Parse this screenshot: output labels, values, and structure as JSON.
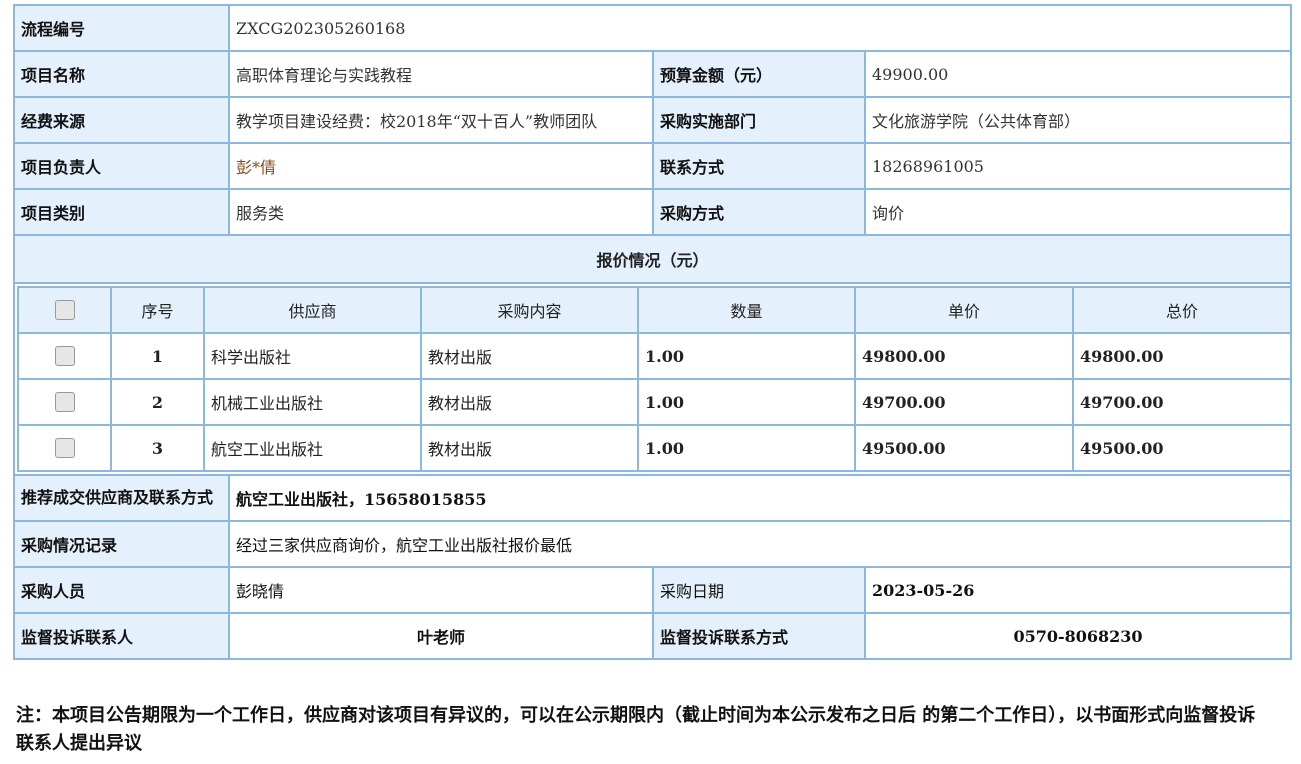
{
  "info": {
    "process_no_label": "流程编号",
    "process_no": "ZXCG202305260168",
    "project_name_label": "项目名称",
    "project_name": "高职体育理论与实践教程",
    "budget_label": "预算金额（元）",
    "budget": "49900.00",
    "fund_source_label": "经费来源",
    "fund_source": "教学项目建设经费：校2018年“双十百人”教师团队",
    "dept_label": "采购实施部门",
    "dept": "文化旅游学院（公共体育部）",
    "leader_label": "项目负责人",
    "leader": "彭*倩",
    "contact_label": "联系方式",
    "contact": "18268961005",
    "category_label": "项目类别",
    "category": "服务类",
    "method_label": "采购方式",
    "method": "询价"
  },
  "quote": {
    "title": "报价情况（元）",
    "columns": [
      "序号",
      "供应商",
      "采购内容",
      "数量",
      "单价",
      "总价"
    ],
    "rows": [
      {
        "no": "1",
        "supplier": "科学出版社",
        "content": "教材出版",
        "qty": "1.00",
        "unit": "49800.00",
        "total": "49800.00"
      },
      {
        "no": "2",
        "supplier": "机械工业出版社",
        "content": "教材出版",
        "qty": "1.00",
        "unit": "49700.00",
        "total": "49700.00"
      },
      {
        "no": "3",
        "supplier": "航空工业出版社",
        "content": "教材出版",
        "qty": "1.00",
        "unit": "49500.00",
        "total": "49500.00"
      }
    ]
  },
  "result": {
    "recommend_label": "推荐成交供应商及联系方式",
    "recommend": "航空工业出版社，15658015855",
    "record_label": "采购情况记录",
    "record": "经过三家供应商询价，航空工业出版社报价最低",
    "buyer_label": "采购人员",
    "buyer": "彭晓倩",
    "date_label": "采购日期",
    "date": "2023-05-26",
    "supervisor_label": "监督投诉联系人",
    "supervisor": "叶老师",
    "supervisor_contact_label": "监督投诉联系方式",
    "supervisor_contact": "0570-8068230"
  },
  "note": "注：本项目公告期限为一个工作日，供应商对该项目有异议的，可以在公示期限内（截止时间为本公示发布之日后 的第二个工作日），以书面形式向监督投诉联系人提出异议"
}
